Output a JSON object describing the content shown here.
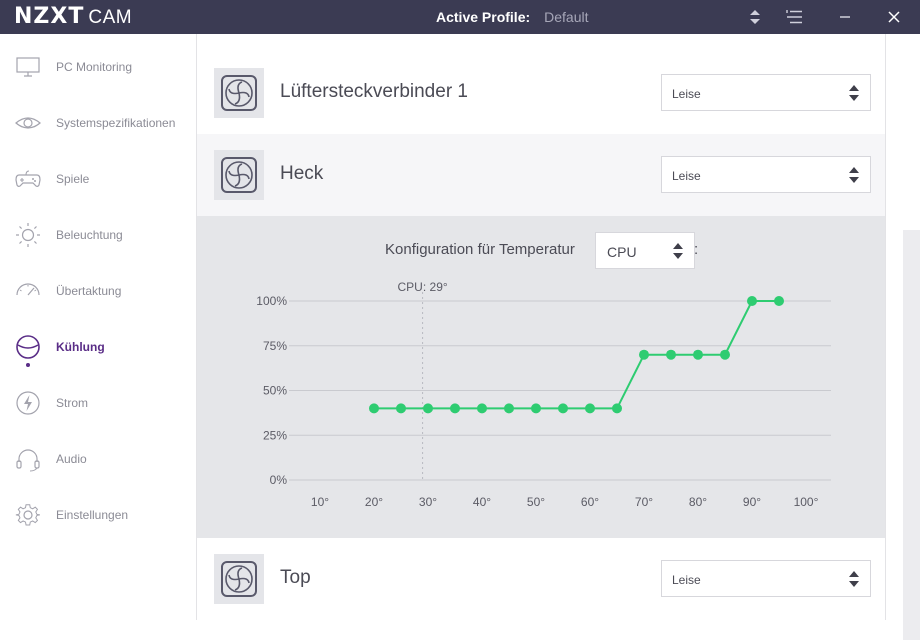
{
  "titlebar": {
    "logo_main": "NZXT",
    "logo_sub": "CAM",
    "profile_label": "Active Profile:",
    "profile_value": "Default"
  },
  "sidebar": {
    "items": [
      {
        "label": "PC Monitoring",
        "icon": "monitor-icon"
      },
      {
        "label": "Systemspezifikationen",
        "icon": "eye-icon"
      },
      {
        "label": "Spiele",
        "icon": "gamepad-icon"
      },
      {
        "label": "Beleuchtung",
        "icon": "sun-icon"
      },
      {
        "label": "Übertaktung",
        "icon": "gauge-icon"
      },
      {
        "label": "Kühlung",
        "icon": "cooling-icon",
        "active": true
      },
      {
        "label": "Strom",
        "icon": "lightning-icon"
      },
      {
        "label": "Audio",
        "icon": "headphones-icon"
      },
      {
        "label": "Einstellungen",
        "icon": "gear-icon"
      }
    ]
  },
  "fans": [
    {
      "name": "Lüftersteckverbinder 1",
      "mode": "Leise"
    },
    {
      "name": "Heck",
      "mode": "Leise"
    },
    {
      "name": "Top",
      "mode": "Leise"
    }
  ],
  "curve": {
    "label": "Konfiguration für Temperatur",
    "sensor": "CPU",
    "colon": ":"
  },
  "chart_data": {
    "type": "line",
    "x": [
      20,
      25,
      30,
      35,
      40,
      45,
      50,
      55,
      60,
      65,
      70,
      75,
      80,
      85,
      90,
      95
    ],
    "values": [
      40,
      40,
      40,
      40,
      40,
      40,
      40,
      40,
      40,
      40,
      70,
      70,
      70,
      70,
      100,
      100
    ],
    "xlim": [
      10,
      100
    ],
    "ylim": [
      0,
      100
    ],
    "xticks": [
      "10°",
      "20°",
      "30°",
      "40°",
      "50°",
      "60°",
      "70°",
      "80°",
      "90°",
      "100°"
    ],
    "yticks": [
      "0%",
      "25%",
      "50%",
      "75%",
      "100%"
    ],
    "marker": {
      "x": 29,
      "label": "CPU: 29°"
    },
    "color": "#2ecc71",
    "grid": true
  },
  "colors": {
    "titlebar": "#3b3b53",
    "accent": "#5a2d87",
    "curve": "#2ecc71"
  }
}
